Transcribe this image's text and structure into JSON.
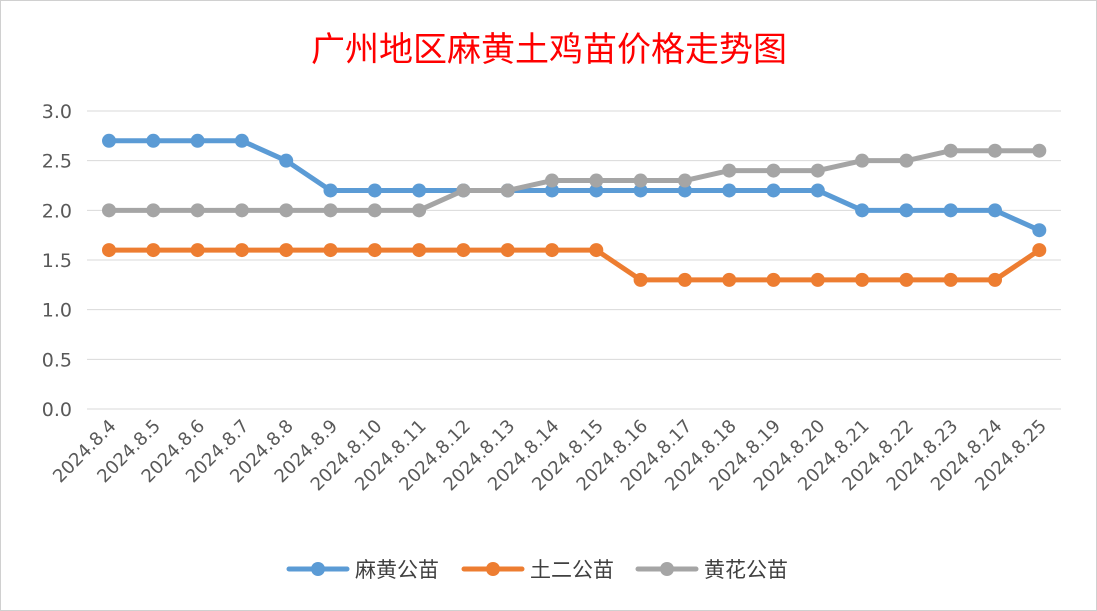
{
  "chart_data": {
    "type": "line",
    "title": "广州地区麻黄土鸡苗价格走势图",
    "xlabel": "",
    "ylabel": "",
    "ylim": [
      0,
      3.0
    ],
    "yticks": [
      "0.0",
      "0.5",
      "1.0",
      "1.5",
      "2.0",
      "2.5",
      "3.0"
    ],
    "grid": true,
    "legend_position": "bottom",
    "categories": [
      "2024.8.4",
      "2024.8.5",
      "2024.8.6",
      "2024.8.7",
      "2024.8.8",
      "2024.8.9",
      "2024.8.10",
      "2024.8.11",
      "2024.8.12",
      "2024.8.13",
      "2024.8.14",
      "2024.8.15",
      "2024.8.16",
      "2024.8.17",
      "2024.8.18",
      "2024.8.19",
      "2024.8.20",
      "2024.8.21",
      "2024.8.22",
      "2024.8.23",
      "2024.8.24",
      "2024.8.25"
    ],
    "series": [
      {
        "name": "麻黄公苗",
        "color": "#5b9bd5",
        "values": [
          2.7,
          2.7,
          2.7,
          2.7,
          2.5,
          2.2,
          2.2,
          2.2,
          2.2,
          2.2,
          2.2,
          2.2,
          2.2,
          2.2,
          2.2,
          2.2,
          2.2,
          2.0,
          2.0,
          2.0,
          2.0,
          1.8
        ]
      },
      {
        "name": "土二公苗",
        "color": "#ed7d31",
        "values": [
          1.6,
          1.6,
          1.6,
          1.6,
          1.6,
          1.6,
          1.6,
          1.6,
          1.6,
          1.6,
          1.6,
          1.6,
          1.3,
          1.3,
          1.3,
          1.3,
          1.3,
          1.3,
          1.3,
          1.3,
          1.3,
          1.6
        ]
      },
      {
        "name": "黄花公苗",
        "color": "#a5a5a5",
        "values": [
          2.0,
          2.0,
          2.0,
          2.0,
          2.0,
          2.0,
          2.0,
          2.0,
          2.2,
          2.2,
          2.3,
          2.3,
          2.3,
          2.3,
          2.4,
          2.4,
          2.4,
          2.5,
          2.5,
          2.6,
          2.6,
          2.6
        ]
      }
    ]
  }
}
